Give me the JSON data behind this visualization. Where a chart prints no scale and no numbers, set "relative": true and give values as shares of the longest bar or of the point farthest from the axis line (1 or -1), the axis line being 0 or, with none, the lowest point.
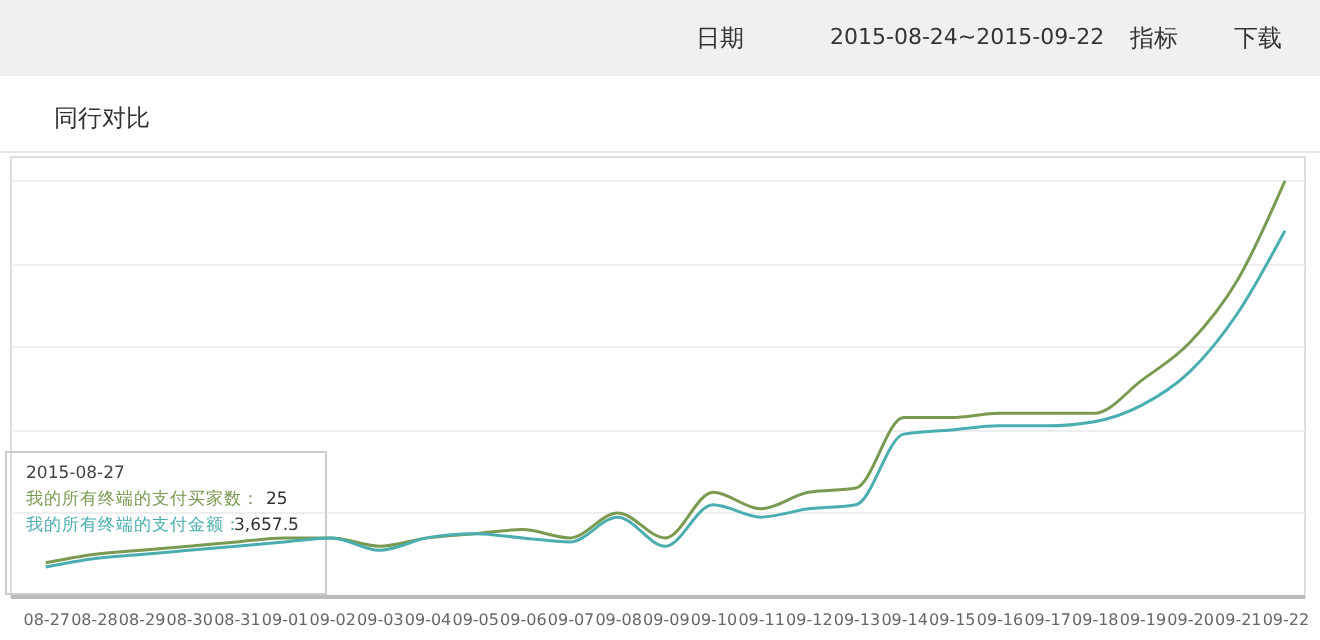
{
  "chart_data": {
    "type": "line",
    "relative": true,
    "grid": "y",
    "legend": false,
    "tick_labels": "x",
    "marker": "none",
    "line_style": "solid",
    "categories": [
      "08-27",
      "08-28",
      "08-29",
      "08-30",
      "08-31",
      "09-01",
      "09-02",
      "09-03",
      "09-04",
      "09-05",
      "09-06",
      "09-07",
      "09-08",
      "09-09",
      "09-10",
      "09-11",
      "09-12",
      "09-13",
      "09-14",
      "09-15",
      "09-16",
      "09-17",
      "09-18",
      "09-19",
      "09-20",
      "09-21",
      "09-22"
    ],
    "series": [
      {
        "name": "我的所有终端的支付买家数：",
        "color": "#7a9a52",
        "values": [
          0.08,
          0.1,
          0.11,
          0.12,
          0.13,
          0.14,
          0.14,
          0.12,
          0.14,
          0.15,
          0.16,
          0.14,
          0.2,
          0.14,
          0.25,
          0.21,
          0.25,
          0.26,
          0.43,
          0.43,
          0.44,
          0.44,
          0.44,
          0.52,
          0.61,
          0.76,
          1
        ]
      },
      {
        "name": "我的所有终端的支付金额：",
        "color": "#4aaeb0",
        "values": [
          0.07,
          0.09,
          0.1,
          0.11,
          0.12,
          0.13,
          0.14,
          0.11,
          0.14,
          0.15,
          0.14,
          0.13,
          0.19,
          0.12,
          0.22,
          0.19,
          0.21,
          0.22,
          0.39,
          0.4,
          0.41,
          0.41,
          0.42,
          0.46,
          0.54,
          0.68,
          0.88
        ]
      }
    ],
    "annotations": [
      "日期",
      "2015-08-24~2015-09-22",
      "指标",
      "下载",
      "同行对比",
      "2015-08-27",
      "25",
      "3,657.5"
    ]
  }
}
